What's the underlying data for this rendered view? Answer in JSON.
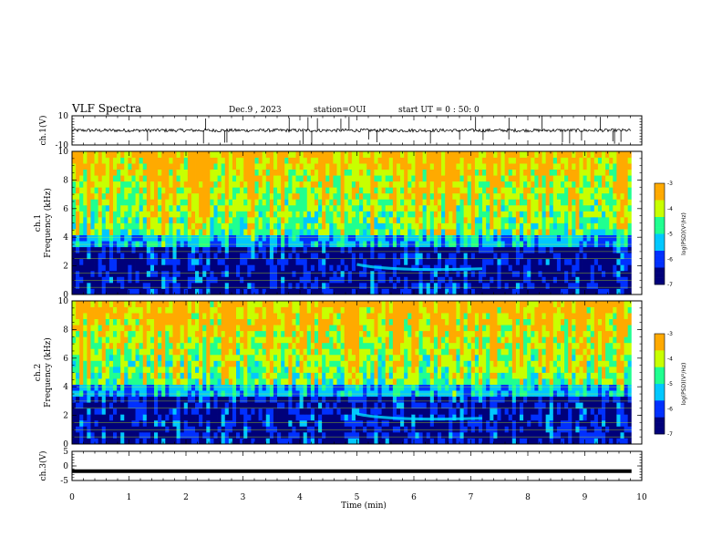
{
  "header": {
    "title": "VLF Spectra",
    "date": "Dec.9 , 2023",
    "station": "station=OUI",
    "start_ut": "start UT = 0 : 50: 0"
  },
  "chart_data": [
    {
      "type": "line",
      "panel": "ch1-waveform",
      "ylabel": "ch.1(V)",
      "ytick_labels": [
        "10",
        "-10"
      ],
      "ylim": [
        -10,
        10
      ],
      "xlim": [
        0,
        10
      ],
      "series": [
        {
          "y_baseline": 0
        }
      ]
    },
    {
      "type": "heatmap",
      "panel": "ch1-spectrogram",
      "ylabel": "ch.1\nFrequency (kHz)",
      "ytick_labels": [
        "0",
        "2",
        "4",
        "6",
        "8",
        "10"
      ],
      "ylim": [
        0,
        10
      ],
      "xlim": [
        0,
        10
      ],
      "data_end_min": 9.82,
      "colorbar": {
        "label": "log(PSD)(V²/Hz)",
        "range": [
          -7,
          -3
        ],
        "tick_labels": [
          "-3",
          "-4",
          "-5",
          "-6",
          "-7"
        ]
      }
    },
    {
      "type": "heatmap",
      "panel": "ch2-spectrogram",
      "ylabel": "ch.2\nFrequency (kHz)",
      "ytick_labels": [
        "0",
        "2",
        "4",
        "6",
        "8",
        "10"
      ],
      "ylim": [
        0,
        10
      ],
      "xlim": [
        0,
        10
      ],
      "data_end_min": 9.82,
      "colorbar": {
        "label": "log(PSD)(V²/Hz)",
        "range": [
          -7,
          -3
        ],
        "tick_labels": [
          "-3",
          "-4",
          "-5",
          "-6",
          "-7"
        ]
      }
    },
    {
      "type": "line",
      "panel": "ch3-waveform",
      "ylabel": "ch.3(V)",
      "ytick_labels": [
        "5",
        "0",
        "-5"
      ],
      "ylim": [
        -5,
        5
      ],
      "xlim": [
        0,
        10
      ],
      "series": [
        {
          "y_value": -1.8
        }
      ]
    }
  ],
  "x_axis": {
    "label": "Time (min)",
    "tick_labels": [
      "0",
      "1",
      "2",
      "3",
      "4",
      "5",
      "6",
      "7",
      "8",
      "9",
      "10"
    ]
  },
  "colors": {
    "background": "#ffffff",
    "frame": "#000000",
    "colormap": [
      "#00007a",
      "#0030ff",
      "#00c8ff",
      "#20ff90",
      "#c8ff00",
      "#ffaa00",
      "#ff0000"
    ]
  }
}
